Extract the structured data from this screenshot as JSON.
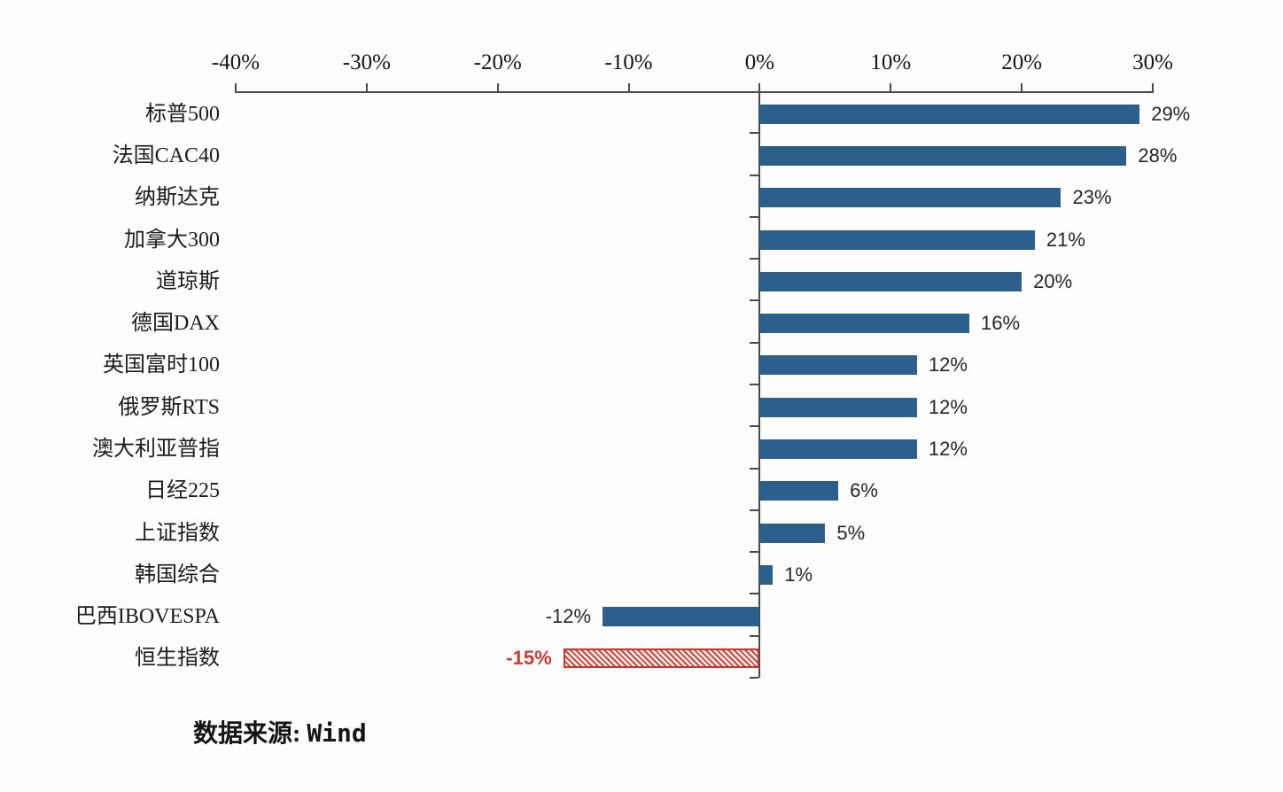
{
  "chart_data": {
    "type": "bar",
    "orientation": "horizontal",
    "title": "",
    "xlabel": "",
    "ylabel": "",
    "xlim": [
      -40,
      30
    ],
    "grid": false,
    "legend": "none",
    "x_ticks": [
      {
        "value": -40,
        "label": "-40%"
      },
      {
        "value": -30,
        "label": "-30%"
      },
      {
        "value": -20,
        "label": "-20%"
      },
      {
        "value": -10,
        "label": "-10%"
      },
      {
        "value": 0,
        "label": "0%"
      },
      {
        "value": 10,
        "label": "10%"
      },
      {
        "value": 20,
        "label": "20%"
      },
      {
        "value": 30,
        "label": "30%"
      }
    ],
    "categories": [
      "标普500",
      "法国CAC40",
      "纳斯达克",
      "加拿大300",
      "道琼斯",
      "德国DAX",
      "英国富时100",
      "俄罗斯RTS",
      "澳大利亚普指",
      "日经225",
      "上证指数",
      "韩国综合",
      "巴西IBOVESPA",
      "恒生指数"
    ],
    "values": [
      29,
      28,
      23,
      21,
      20,
      16,
      12,
      12,
      12,
      6,
      5,
      1,
      -12,
      -15
    ],
    "value_labels": [
      "29%",
      "28%",
      "23%",
      "21%",
      "20%",
      "16%",
      "12%",
      "12%",
      "12%",
      "6%",
      "5%",
      "1%",
      "-12%",
      "-15%"
    ],
    "highlight_category": "恒生指数",
    "bar_color": "#2d5f8d",
    "highlight_color": "#d03a30",
    "axis_color": "#4a4a4a"
  },
  "source": {
    "prefix": "数据来源: ",
    "name": "Wind"
  }
}
